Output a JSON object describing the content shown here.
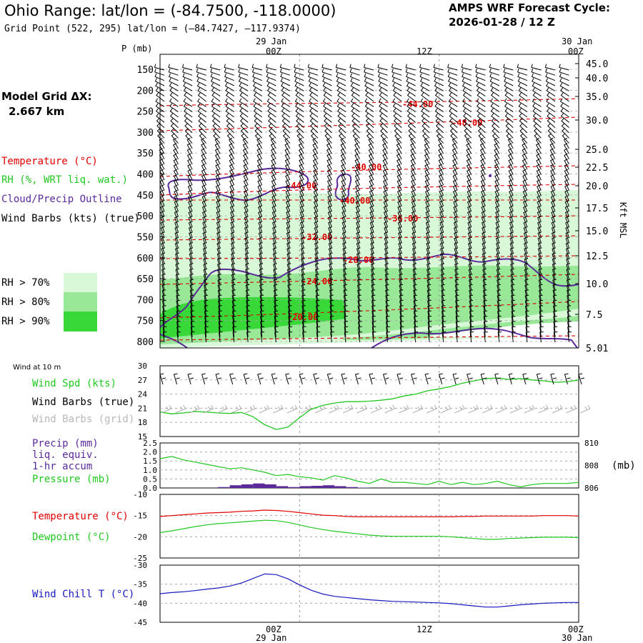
{
  "header": {
    "title": "Ohio Range:  lat/lon = (-84.7500, -118.0000)",
    "grid_point": "Grid Point (522, 295) lat/lon = (–84.7427, –117.9374)",
    "forecast_label": "AMPS WRF Forecast Cycle:",
    "forecast_cycle": "2026-01-28 / 12  Z"
  },
  "model_grid": {
    "label": "Model Grid ΔX:",
    "value": "2.667 km"
  },
  "legend": {
    "temperature": "Temperature (°C)",
    "rh": "RH (%, WRT liq. wat.)",
    "cloud": "Cloud/Precip Outline",
    "wind": "Wind Barbs (kts) (true)",
    "rh70": "RH > 70%",
    "rh80": "RH > 80%",
    "rh90": "RH > 90%"
  },
  "colors": {
    "rh70": "#d8f8d8",
    "rh80": "#98e898",
    "rh90": "#38d838",
    "temperature": "#e00000",
    "cloud": "#5a2a9a",
    "rh_line": "#20c820",
    "dewpoint": "#20c820",
    "windchill": "#1818c0",
    "grid": "#999999",
    "barb_grid": "#b0b0b0"
  },
  "time_axis": {
    "top_date_left": "29 Jan",
    "top_date_right": "30 Jan",
    "labels": [
      "00Z",
      "12Z",
      "00Z"
    ],
    "bottom_date_left": "29 Jan",
    "bottom_date_right": "30 Jan"
  },
  "sounding": {
    "pressure_label": "P (mb)",
    "pressure_ticks": [
      "150",
      "200",
      "250",
      "300",
      "350",
      "400",
      "450",
      "500",
      "550",
      "600",
      "650",
      "700",
      "750",
      "800"
    ],
    "height_label": "Kft MSL",
    "height_ticks": [
      "45.0",
      "40.0",
      "35.0",
      "30.0",
      "25.0",
      "22.5",
      "20.0",
      "17.5",
      "15.0",
      "12.5",
      "10.0",
      "7.5",
      "5.01"
    ],
    "temp_contour_labels": [
      "-44.00",
      "-48.00",
      "-40.00",
      "-44.00",
      "-40.00",
      "-36.00",
      "-32.00",
      "-28.00",
      "-24.00",
      "-20.00"
    ]
  },
  "wind10": {
    "header": "Wind at 10 m",
    "speed_label": "Wind Spd (kts)",
    "barbs_true": "Wind Barbs (true)",
    "barbs_grid": "Wind Barbs (grid)",
    "yticks": [
      "30",
      "27",
      "24",
      "21",
      "18",
      "15"
    ]
  },
  "precip": {
    "label1": "Precip (mm)",
    "label2": "liq. equiv.",
    "label3": "1-hr accum",
    "pressure_label": "Pressure (mb)",
    "unit_label": "(mb)",
    "left_ticks": [
      "2.5",
      "2.0",
      "1.5",
      "1.0",
      "0.5",
      "0.0"
    ],
    "right_ticks": [
      "810",
      "808",
      "806"
    ]
  },
  "temp_panel": {
    "temp_label": "Temperature (°C)",
    "dew_label": "Dewpoint (°C)",
    "yticks": [
      "-10",
      "-15",
      "-20",
      "-25"
    ]
  },
  "chill_panel": {
    "label": "Wind Chill T (°C)",
    "yticks": [
      "-30",
      "-35",
      "-40",
      "-45"
    ]
  },
  "chart_data": [
    {
      "type": "line",
      "title": "Wind at 10 m",
      "x": [
        0,
        1,
        2,
        3,
        4,
        5,
        6,
        7,
        8,
        9,
        10,
        11,
        12,
        13,
        14,
        15,
        16,
        17,
        18,
        19,
        20,
        21,
        22,
        23,
        24,
        25,
        26,
        27,
        28,
        29,
        30,
        31,
        32,
        33,
        34,
        35,
        36
      ],
      "series": [
        {
          "name": "Wind Spd (kts)",
          "values": [
            20.2,
            19.8,
            20.0,
            20.3,
            20.2,
            20.0,
            19.9,
            20.1,
            19.2,
            17.5,
            16.5,
            17.0,
            19.0,
            20.8,
            21.6,
            22.1,
            22.4,
            22.4,
            22.5,
            22.7,
            23.0,
            23.6,
            24.0,
            24.7,
            25.1,
            25.6,
            26.3,
            26.8,
            27.3,
            27.4,
            27.1,
            27.3,
            27.0,
            26.8,
            26.5,
            26.6,
            27.0
          ]
        }
      ],
      "ylim": [
        15,
        30
      ],
      "ylabel": "kts"
    },
    {
      "type": "line",
      "title": "Precip / Pressure",
      "x": [
        0,
        1,
        2,
        3,
        4,
        5,
        6,
        7,
        8,
        9,
        10,
        11,
        12,
        13,
        14,
        15,
        16,
        17,
        18,
        19,
        20,
        21,
        22,
        23,
        24,
        25,
        26,
        27,
        28,
        29,
        30,
        31,
        32,
        33,
        34,
        35,
        36
      ],
      "series": [
        {
          "name": "Pressure (mb)",
          "values": [
            808.6,
            808.8,
            808.5,
            808.3,
            808.1,
            807.9,
            807.7,
            807.8,
            807.6,
            807.4,
            807.1,
            807.2,
            807.0,
            806.9,
            806.7,
            807.1,
            806.9,
            806.6,
            806.4,
            806.8,
            806.5,
            806.5,
            806.4,
            806.3,
            806.6,
            806.3,
            806.5,
            806.3,
            806.4,
            806.6,
            806.3,
            806.1,
            806.3,
            806.4,
            806.4,
            806.4,
            806.5
          ]
        },
        {
          "name": "Precip (mm)",
          "values": [
            0,
            0,
            0,
            0,
            0,
            0.05,
            0.15,
            0.2,
            0.25,
            0.2,
            0.1,
            0.05,
            0.1,
            0.12,
            0.15,
            0.1,
            0.05,
            0.02,
            0,
            0,
            0,
            0,
            0,
            0,
            0,
            0,
            0,
            0,
            0,
            0,
            0,
            0,
            0,
            0,
            0,
            0,
            0
          ]
        }
      ],
      "ylim": [
        0,
        2.5
      ],
      "y2lim": [
        806,
        810
      ]
    },
    {
      "type": "line",
      "title": "Temperature / Dewpoint",
      "x": [
        0,
        1,
        2,
        3,
        4,
        5,
        6,
        7,
        8,
        9,
        10,
        11,
        12,
        13,
        14,
        15,
        16,
        17,
        18,
        19,
        20,
        21,
        22,
        23,
        24,
        25,
        26,
        27,
        28,
        29,
        30,
        31,
        32,
        33,
        34,
        35,
        36
      ],
      "series": [
        {
          "name": "Temperature (°C)",
          "values": [
            -15.2,
            -15.0,
            -14.8,
            -14.6,
            -14.4,
            -14.3,
            -14.2,
            -14.0,
            -13.9,
            -13.7,
            -13.8,
            -14.0,
            -14.3,
            -14.6,
            -14.9,
            -15.0,
            -15.2,
            -15.3,
            -15.3,
            -15.3,
            -15.3,
            -15.3,
            -15.3,
            -15.3,
            -15.3,
            -15.3,
            -15.2,
            -15.2,
            -15.1,
            -15.1,
            -15.1,
            -15.1,
            -15.1,
            -15.0,
            -15.0,
            -15.0,
            -15.1
          ]
        },
        {
          "name": "Dewpoint (°C)",
          "values": [
            -19.0,
            -18.6,
            -18.1,
            -17.6,
            -17.2,
            -16.9,
            -16.7,
            -16.5,
            -16.3,
            -16.1,
            -16.2,
            -16.6,
            -17.2,
            -17.8,
            -18.3,
            -18.7,
            -19.0,
            -19.3,
            -19.6,
            -19.8,
            -19.9,
            -19.9,
            -19.9,
            -19.9,
            -19.9,
            -20.0,
            -20.2,
            -20.4,
            -20.6,
            -20.6,
            -20.4,
            -20.3,
            -20.2,
            -20.1,
            -20.1,
            -20.1,
            -20.2
          ]
        }
      ],
      "ylim": [
        -25,
        -10
      ]
    },
    {
      "type": "line",
      "title": "Wind Chill",
      "x": [
        0,
        1,
        2,
        3,
        4,
        5,
        6,
        7,
        8,
        9,
        10,
        11,
        12,
        13,
        14,
        15,
        16,
        17,
        18,
        19,
        20,
        21,
        22,
        23,
        24,
        25,
        26,
        27,
        28,
        29,
        30,
        31,
        32,
        33,
        34,
        35,
        36
      ],
      "series": [
        {
          "name": "Wind Chill T (°C)",
          "values": [
            -37.5,
            -37.2,
            -37.0,
            -36.7,
            -36.3,
            -36.0,
            -35.5,
            -34.7,
            -33.5,
            -32.3,
            -32.5,
            -33.6,
            -35.2,
            -36.6,
            -37.6,
            -38.2,
            -38.5,
            -38.8,
            -39.1,
            -39.3,
            -39.5,
            -39.6,
            -39.7,
            -39.8,
            -39.9,
            -40.1,
            -40.4,
            -40.7,
            -41.0,
            -41.0,
            -40.7,
            -40.4,
            -40.2,
            -40.0,
            -39.9,
            -39.8,
            -39.8
          ]
        }
      ],
      "ylim": [
        -45,
        -30
      ]
    }
  ]
}
